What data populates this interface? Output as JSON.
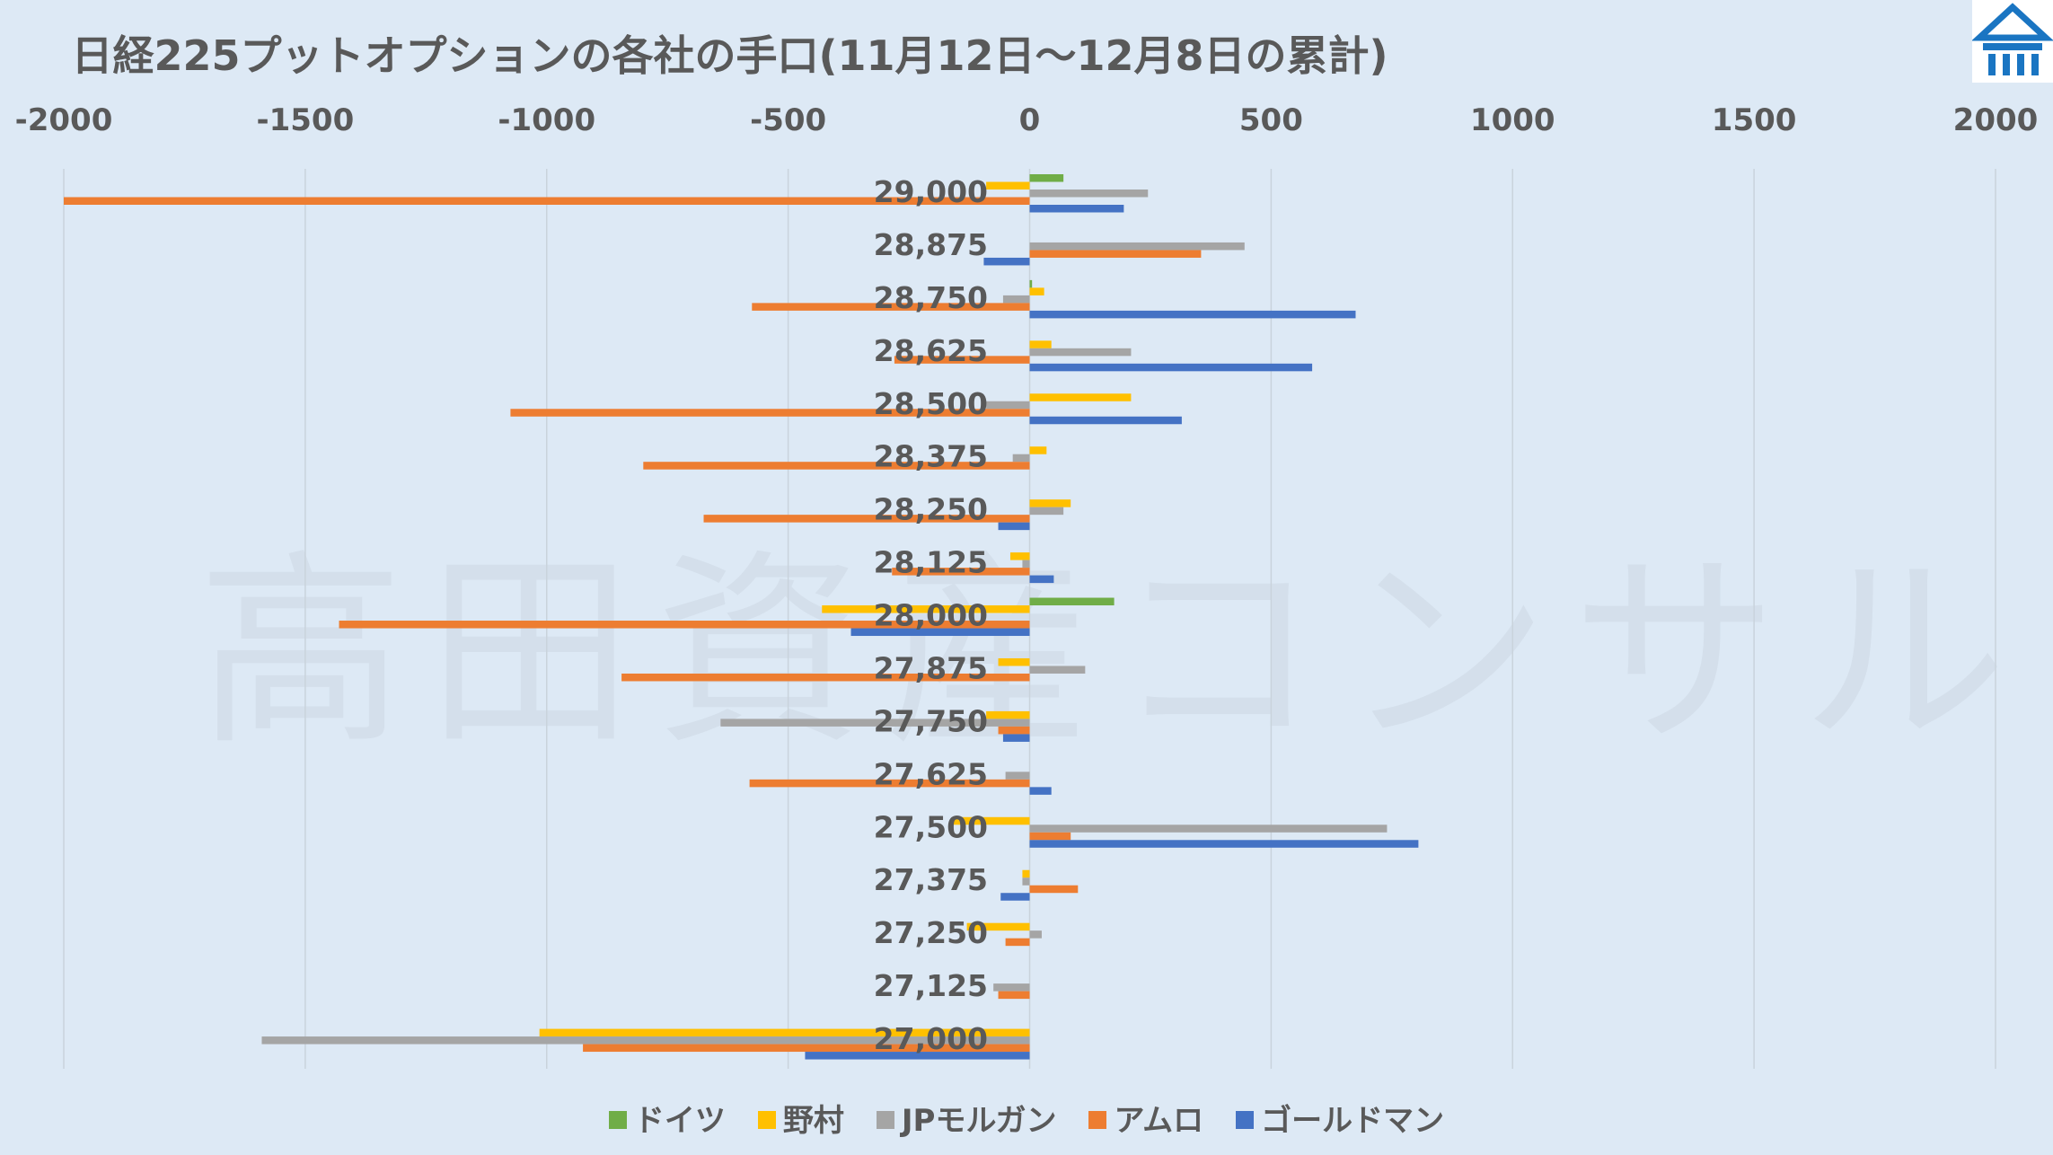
{
  "chart_data": {
    "type": "bar",
    "orientation": "horizontal",
    "title": "日経225プットオプションの各社の手口(11月12日～12月8日の累計)",
    "xlim": [
      -2000,
      2000
    ],
    "x_ticks": [
      "-2000",
      "-1500",
      "-1000",
      "-500",
      "0",
      "500",
      "1000",
      "1500",
      "2000"
    ],
    "categories": [
      "29,000",
      "28,875",
      "28,750",
      "28,625",
      "28,500",
      "28,375",
      "28,250",
      "28,125",
      "28,000",
      "27,875",
      "27,750",
      "27,625",
      "27,500",
      "27,375",
      "27,250",
      "27,125",
      "27,000"
    ],
    "series": [
      {
        "name": "ドイツ",
        "color": "#70ad47",
        "values": [
          70,
          0,
          5,
          0,
          0,
          0,
          0,
          0,
          175,
          0,
          0,
          0,
          0,
          0,
          0,
          0,
          0
        ]
      },
      {
        "name": "野村",
        "color": "#ffc000",
        "values": [
          -90,
          0,
          30,
          45,
          210,
          35,
          85,
          -40,
          -430,
          -65,
          -90,
          0,
          -160,
          -15,
          -130,
          0,
          -1015
        ]
      },
      {
        "name": "JPモルガン",
        "color": "#a5a5a5",
        "values": [
          245,
          445,
          -55,
          210,
          -90,
          -35,
          70,
          -15,
          0,
          115,
          -640,
          -50,
          740,
          -15,
          25,
          -75,
          -1590
        ]
      },
      {
        "name": "アムロ",
        "color": "#ed7d31",
        "values": [
          -2000,
          355,
          -575,
          -280,
          -1075,
          -800,
          -675,
          -285,
          -1430,
          -845,
          -65,
          -580,
          85,
          100,
          -50,
          -65,
          -925
        ]
      },
      {
        "name": "ゴールドマン",
        "color": "#4472c4",
        "values": [
          195,
          -95,
          675,
          585,
          315,
          0,
          -65,
          50,
          -370,
          0,
          -55,
          45,
          805,
          -60,
          0,
          0,
          -465
        ]
      }
    ]
  },
  "watermark": "高田資産コンサル"
}
